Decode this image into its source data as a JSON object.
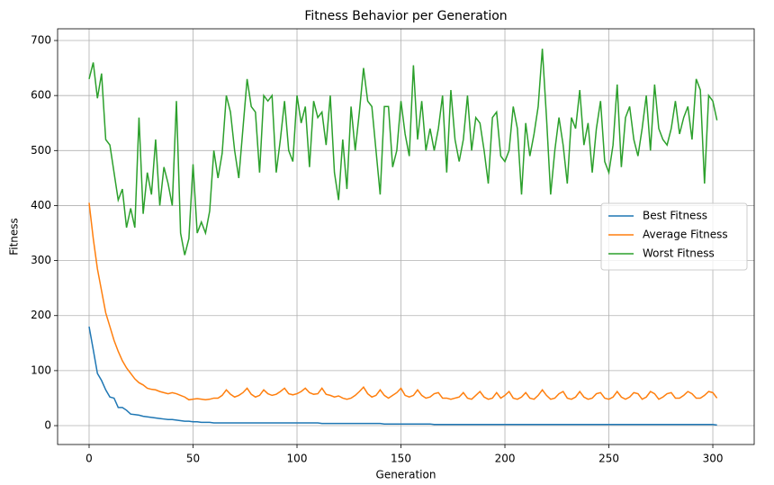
{
  "chart_data": {
    "type": "line",
    "title": "Fitness Behavior per Generation",
    "xlabel": "Generation",
    "ylabel": "Fitness",
    "x": [
      0,
      2,
      4,
      6,
      8,
      10,
      12,
      14,
      16,
      18,
      20,
      22,
      24,
      26,
      28,
      30,
      32,
      34,
      36,
      38,
      40,
      42,
      44,
      46,
      48,
      50,
      52,
      54,
      56,
      58,
      60,
      62,
      64,
      66,
      68,
      70,
      72,
      74,
      76,
      78,
      80,
      82,
      84,
      86,
      88,
      90,
      92,
      94,
      96,
      98,
      100,
      102,
      104,
      106,
      108,
      110,
      112,
      114,
      116,
      118,
      120,
      122,
      124,
      126,
      128,
      130,
      132,
      134,
      136,
      138,
      140,
      142,
      144,
      146,
      148,
      150,
      152,
      154,
      156,
      158,
      160,
      162,
      164,
      166,
      168,
      170,
      172,
      174,
      176,
      178,
      180,
      182,
      184,
      186,
      188,
      190,
      192,
      194,
      196,
      198,
      200,
      202,
      204,
      206,
      208,
      210,
      212,
      214,
      216,
      218,
      220,
      222,
      224,
      226,
      228,
      230,
      232,
      234,
      236,
      238,
      240,
      242,
      244,
      246,
      248,
      250,
      252,
      254,
      256,
      258,
      260,
      262,
      264,
      266,
      268,
      270,
      272,
      274,
      276,
      278,
      280,
      282,
      284,
      286,
      288,
      290,
      292,
      294,
      296,
      298,
      300,
      302
    ],
    "series": [
      {
        "name": "Best Fitness",
        "color": "#1f77b4",
        "values": [
          180,
          138,
          95,
          82,
          65,
          52,
          50,
          33,
          33,
          28,
          21,
          20,
          19,
          17,
          16,
          15,
          14,
          13,
          12,
          11,
          11,
          10,
          9,
          8,
          8,
          7,
          7,
          6,
          6,
          6,
          5,
          5,
          5,
          5,
          5,
          5,
          5,
          5,
          5,
          5,
          5,
          5,
          5,
          5,
          5,
          5,
          5,
          5,
          5,
          5,
          5,
          5,
          5,
          5,
          5,
          5,
          4,
          4,
          4,
          4,
          4,
          4,
          4,
          4,
          4,
          4,
          4,
          4,
          4,
          4,
          4,
          3,
          3,
          3,
          3,
          3,
          3,
          3,
          3,
          3,
          3,
          3,
          3,
          2,
          2,
          2,
          2,
          2,
          2,
          2,
          2,
          2,
          2,
          2,
          2,
          2,
          2,
          2,
          2,
          2,
          2,
          2,
          2,
          2,
          2,
          2,
          2,
          2,
          2,
          2,
          2,
          2,
          2,
          2,
          2,
          2,
          2,
          2,
          2,
          2,
          2,
          2,
          2,
          2,
          2,
          2,
          2,
          2,
          2,
          2,
          2,
          2,
          2,
          2,
          2,
          2,
          2,
          2,
          2,
          2,
          2,
          2,
          2,
          2,
          2,
          2,
          2,
          2,
          2,
          2,
          2,
          1
        ]
      },
      {
        "name": "Average Fitness",
        "color": "#ff7f0e",
        "values": [
          405,
          340,
          285,
          245,
          205,
          180,
          155,
          135,
          118,
          105,
          95,
          85,
          78,
          74,
          68,
          66,
          65,
          62,
          60,
          58,
          60,
          58,
          55,
          52,
          47,
          48,
          49,
          48,
          47,
          48,
          50,
          50,
          55,
          65,
          57,
          52,
          55,
          60,
          68,
          57,
          52,
          55,
          65,
          58,
          55,
          57,
          62,
          68,
          58,
          56,
          58,
          62,
          68,
          60,
          57,
          58,
          68,
          57,
          55,
          52,
          54,
          50,
          48,
          50,
          55,
          62,
          70,
          58,
          52,
          55,
          65,
          55,
          50,
          55,
          60,
          68,
          55,
          52,
          55,
          65,
          55,
          50,
          52,
          58,
          60,
          50,
          50,
          48,
          50,
          52,
          60,
          50,
          48,
          55,
          62,
          52,
          48,
          50,
          60,
          50,
          55,
          62,
          50,
          48,
          52,
          60,
          50,
          48,
          55,
          65,
          55,
          48,
          50,
          58,
          62,
          50,
          48,
          52,
          62,
          52,
          48,
          50,
          58,
          60,
          50,
          48,
          52,
          62,
          52,
          48,
          52,
          60,
          58,
          48,
          52,
          62,
          58,
          48,
          52,
          58,
          60,
          50,
          50,
          55,
          62,
          58,
          50,
          50,
          55,
          62,
          60,
          50
        ]
      },
      {
        "name": "Worst Fitness",
        "color": "#2ca02c",
        "values": [
          630,
          660,
          595,
          640,
          520,
          510,
          460,
          410,
          430,
          360,
          395,
          360,
          560,
          385,
          460,
          420,
          520,
          400,
          470,
          440,
          400,
          590,
          350,
          310,
          340,
          475,
          350,
          370,
          350,
          390,
          500,
          450,
          495,
          600,
          570,
          500,
          450,
          540,
          630,
          580,
          570,
          460,
          600,
          590,
          600,
          460,
          520,
          590,
          500,
          480,
          600,
          550,
          580,
          470,
          590,
          560,
          570,
          510,
          600,
          460,
          410,
          520,
          430,
          580,
          500,
          570,
          650,
          590,
          580,
          500,
          420,
          580,
          580,
          470,
          500,
          590,
          530,
          490,
          655,
          520,
          590,
          500,
          540,
          500,
          540,
          600,
          460,
          610,
          520,
          480,
          520,
          600,
          500,
          560,
          550,
          500,
          440,
          560,
          570,
          490,
          480,
          500,
          580,
          540,
          420,
          550,
          490,
          530,
          580,
          685,
          560,
          420,
          500,
          560,
          510,
          440,
          560,
          540,
          610,
          510,
          550,
          460,
          540,
          590,
          480,
          460,
          510,
          620,
          470,
          560,
          580,
          520,
          490,
          540,
          600,
          500,
          620,
          540,
          520,
          510,
          540,
          590,
          530,
          560,
          580,
          520,
          630,
          610,
          440,
          600,
          590,
          555
        ]
      }
    ],
    "xlim": [
      -15.15,
      319.9
    ],
    "ylim": [
      -34.3,
      721.3
    ],
    "xticks": [
      0,
      50,
      100,
      150,
      200,
      250,
      300
    ],
    "yticks": [
      0,
      100,
      200,
      300,
      400,
      500,
      600,
      700
    ],
    "grid": true,
    "legend": "center right"
  }
}
